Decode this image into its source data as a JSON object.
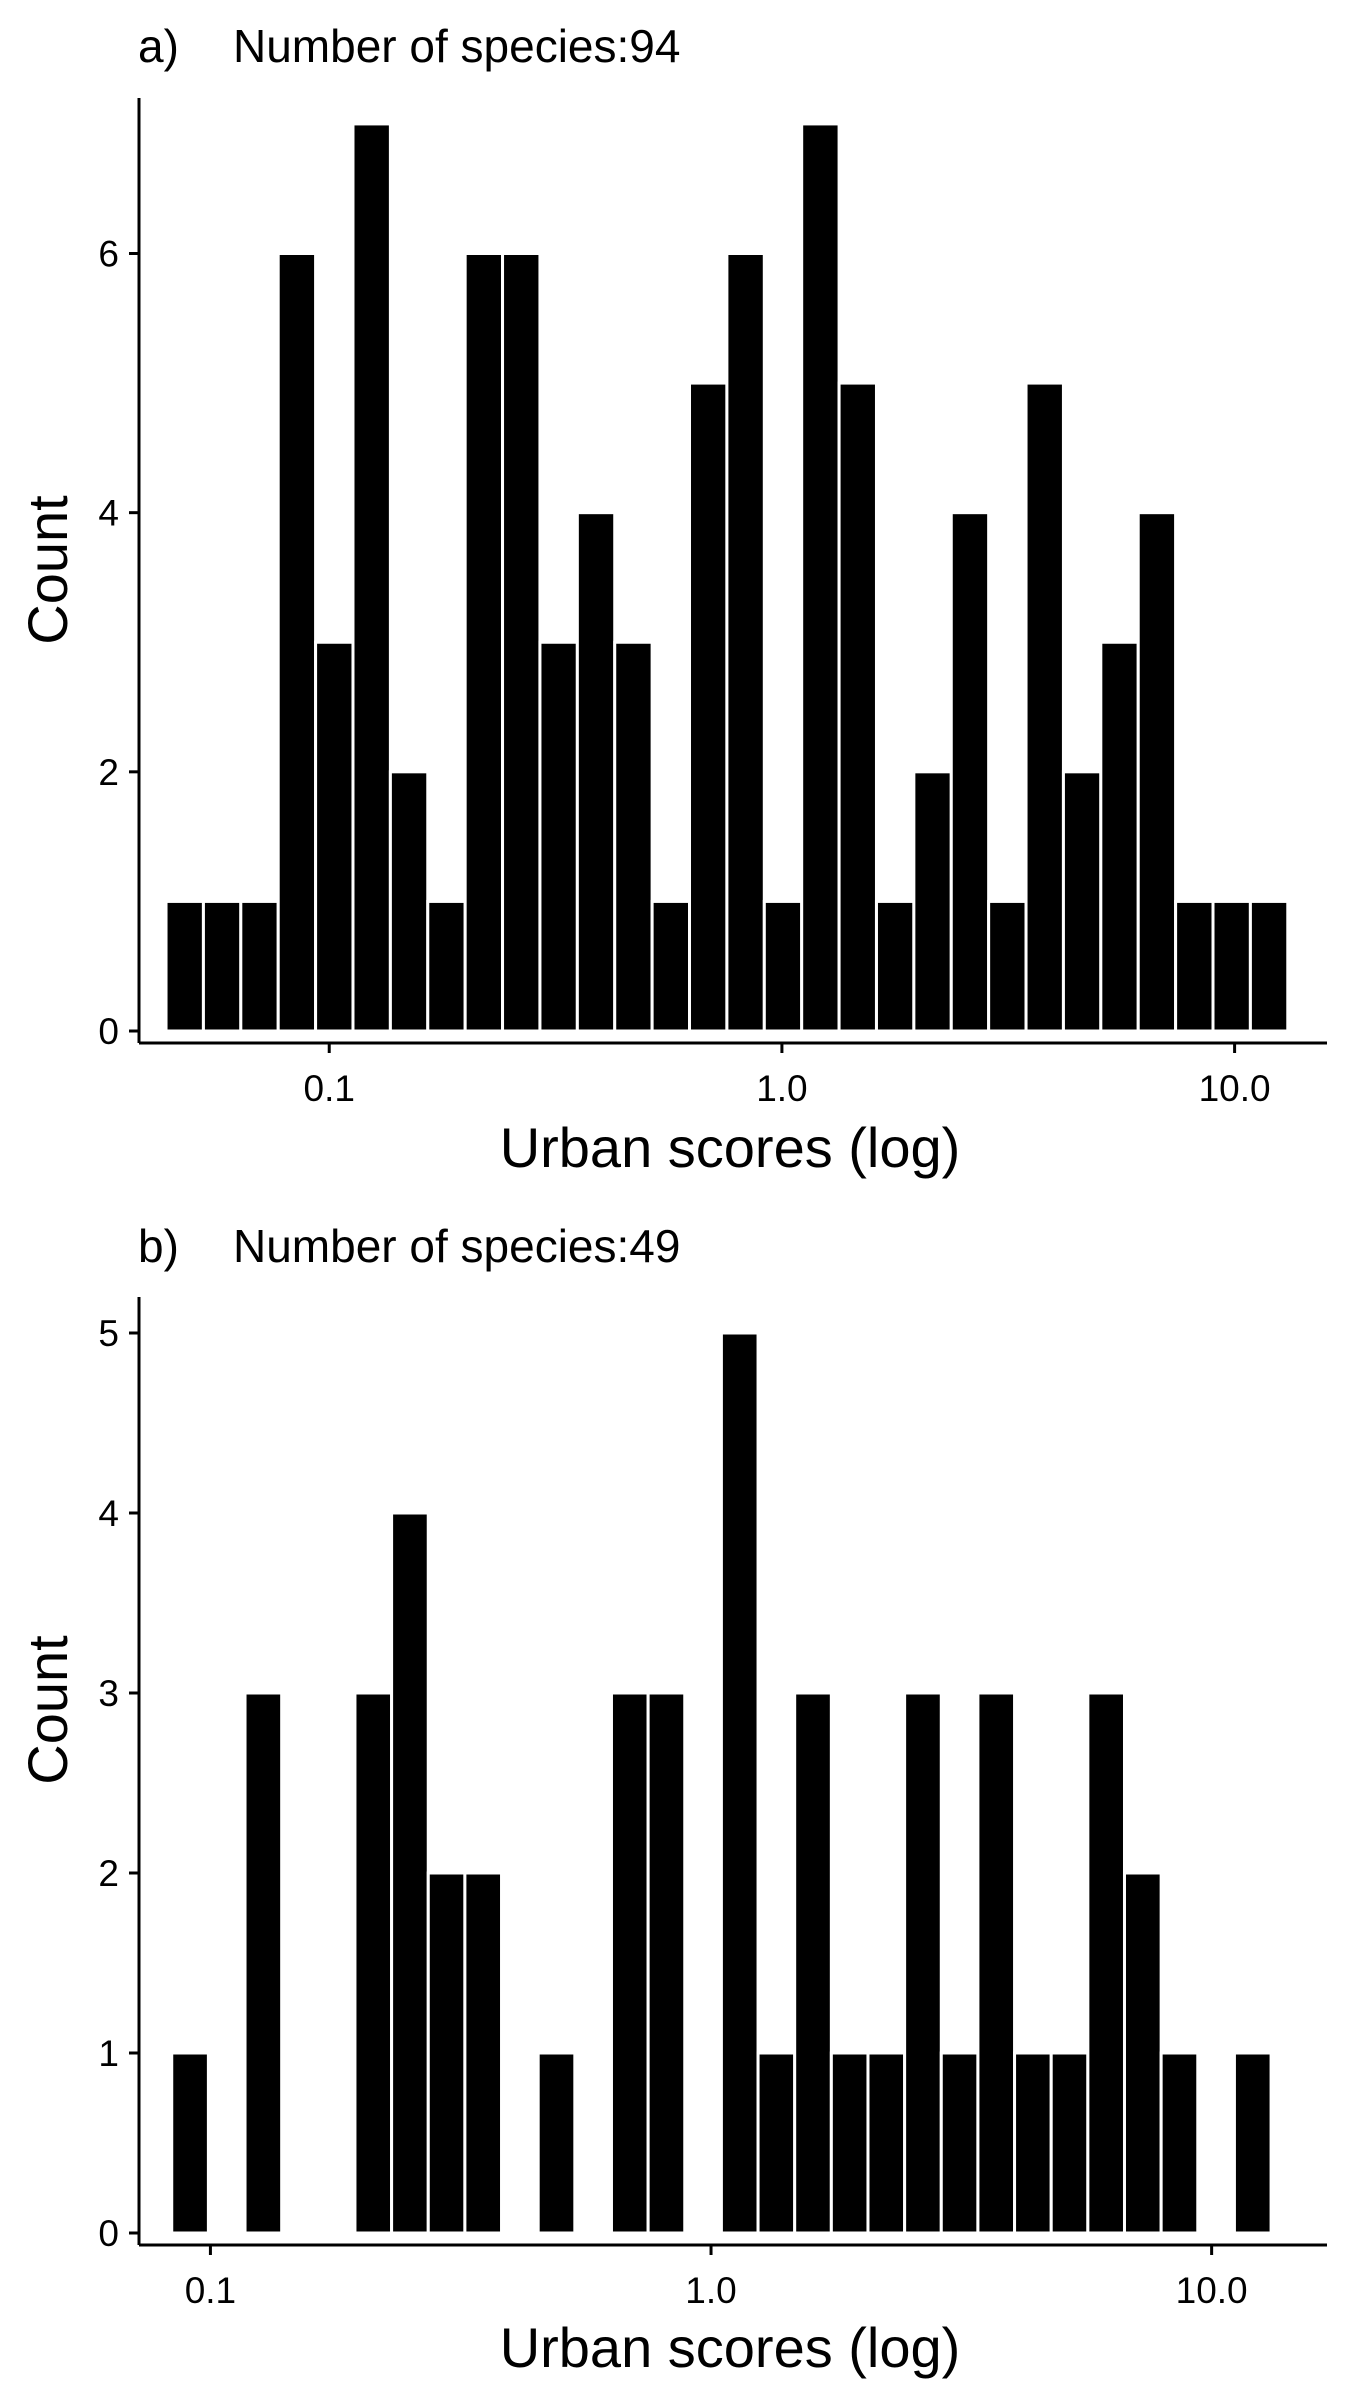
{
  "colors": {
    "bar_fill": "#000000",
    "bar_stroke": "#ffffff",
    "background": "#ffffff",
    "axis": "#000000"
  },
  "chart_data": [
    {
      "type": "bar",
      "panel": "a)",
      "title": "Number of species:94",
      "xlabel": "Urban scores (log)",
      "ylabel": "Count",
      "x_scale": "log10",
      "xlim": [
        0.038,
        16
      ],
      "ylim": [
        0,
        7.2
      ],
      "xticks": [
        0.1,
        1.0,
        10.0
      ],
      "xtick_labels": [
        "0.1",
        "1.0",
        "10.0"
      ],
      "yticks": [
        0,
        2,
        4,
        6
      ],
      "ytick_labels": [
        "0",
        "2",
        "4",
        "6"
      ],
      "grid": false,
      "legend": "none",
      "bins": {
        "first_bin_start": 0.0436,
        "bin_width_log10": 0.0826
      },
      "values": [
        1,
        1,
        1,
        6,
        3,
        7,
        2,
        1,
        6,
        6,
        3,
        4,
        3,
        1,
        5,
        6,
        1,
        7,
        5,
        1,
        2,
        4,
        1,
        5,
        2,
        3,
        4,
        1,
        1,
        1
      ]
    },
    {
      "type": "bar",
      "panel": "b)",
      "title": "Number of species:49",
      "xlabel": "Urban scores (log)",
      "ylabel": "Count",
      "x_scale": "log10",
      "xlim": [
        0.072,
        17
      ],
      "ylim": [
        0,
        5.2
      ],
      "xticks": [
        0.1,
        1.0,
        10.0
      ],
      "xtick_labels": [
        "0.1",
        "1.0",
        "10.0"
      ],
      "yticks": [
        0,
        1,
        2,
        3,
        4,
        5
      ],
      "ytick_labels": [
        "0",
        "1",
        "2",
        "3",
        "4",
        "5"
      ],
      "grid": false,
      "legend": "none",
      "bins": {
        "first_bin_start": 0.0837,
        "bin_width_log10": 0.0732
      },
      "values": [
        1,
        0,
        3,
        0,
        0,
        3,
        4,
        2,
        2,
        0,
        1,
        0,
        3,
        3,
        0,
        5,
        1,
        3,
        1,
        1,
        3,
        1,
        3,
        1,
        1,
        3,
        2,
        1,
        0,
        1
      ]
    }
  ]
}
